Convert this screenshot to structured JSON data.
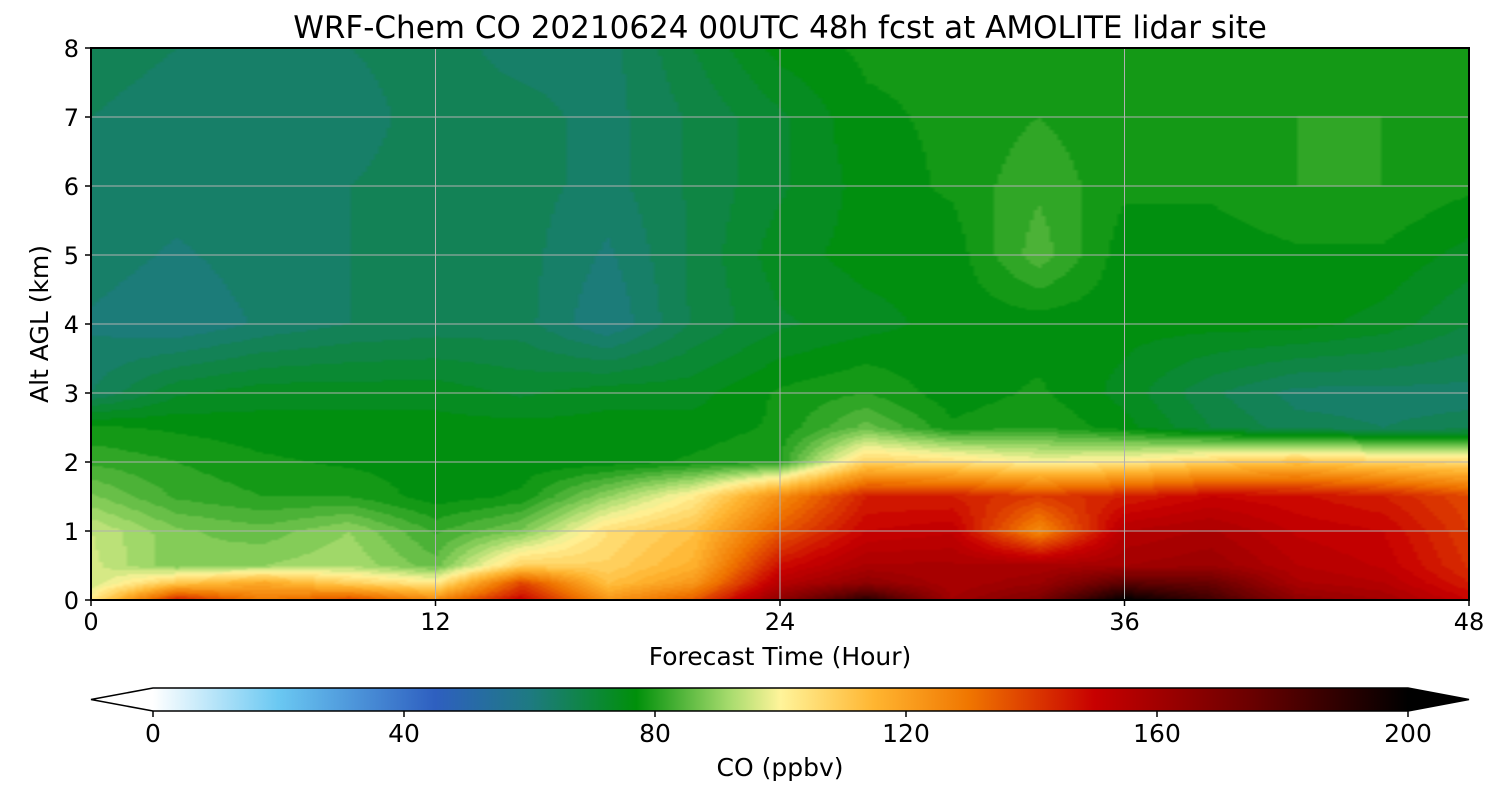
{
  "chart_data": {
    "type": "heatmap",
    "title": "WRF-Chem CO  20210624 00UTC 48h fcst at AMOLITE lidar site",
    "xlabel": "Forecast Time (Hour)",
    "ylabel": "Alt AGL (km)",
    "xlim": [
      0,
      48
    ],
    "ylim": [
      0,
      8
    ],
    "xticks": [
      0,
      12,
      24,
      36,
      48
    ],
    "xtick_labels": [
      "0",
      "12",
      "24",
      "36",
      "48"
    ],
    "yticks": [
      0,
      1,
      2,
      3,
      4,
      5,
      6,
      7,
      8
    ],
    "ytick_labels": [
      "0",
      "1",
      "2",
      "3",
      "4",
      "5",
      "6",
      "7",
      "8"
    ],
    "grid": true,
    "colorbar": {
      "label": "CO  (ppbv)",
      "range": [
        0,
        200
      ],
      "ticks": [
        0,
        40,
        80,
        120,
        160,
        200
      ],
      "tick_labels": [
        "0",
        "40",
        "80",
        "120",
        "160",
        "200"
      ],
      "extend": "both",
      "colormap_stops": [
        {
          "value": 0,
          "color": "#ffffff"
        },
        {
          "value": 20,
          "color": "#6ac8f2"
        },
        {
          "value": 45,
          "color": "#2e5fc0"
        },
        {
          "value": 60,
          "color": "#1e7a82"
        },
        {
          "value": 77,
          "color": "#00900a"
        },
        {
          "value": 92,
          "color": "#a8dc6e"
        },
        {
          "value": 100,
          "color": "#fff49a"
        },
        {
          "value": 115,
          "color": "#ffb530"
        },
        {
          "value": 130,
          "color": "#f07600"
        },
        {
          "value": 150,
          "color": "#c80000"
        },
        {
          "value": 175,
          "color": "#6a0000"
        },
        {
          "value": 200,
          "color": "#000000"
        }
      ]
    },
    "field": {
      "x": [
        0,
        3,
        6,
        9,
        12,
        15,
        18,
        21,
        24,
        27,
        30,
        33,
        36,
        39,
        42,
        45,
        48
      ],
      "y": [
        0,
        0.25,
        0.5,
        1.0,
        1.5,
        2.0,
        2.5,
        3.0,
        4.0,
        5.0,
        6.0,
        7.0,
        8.0
      ],
      "z": [
        [
          102,
          145,
          128,
          138,
          125,
          150,
          122,
          135,
          165,
          190,
          160,
          170,
          200,
          185,
          165,
          160,
          150
        ],
        [
          95,
          110,
          118,
          108,
          102,
          138,
          112,
          122,
          155,
          165,
          158,
          162,
          178,
          175,
          158,
          155,
          145
        ],
        [
          96,
          88,
          90,
          92,
          86,
          108,
          108,
          116,
          148,
          158,
          158,
          158,
          160,
          162,
          155,
          152,
          142
        ],
        [
          95,
          88,
          86,
          90,
          82,
          88,
          105,
          112,
          135,
          150,
          152,
          125,
          155,
          158,
          152,
          150,
          140
        ],
        [
          88,
          82,
          80,
          80,
          76,
          78,
          90,
          102,
          125,
          145,
          145,
          140,
          145,
          150,
          148,
          145,
          138
        ],
        [
          82,
          80,
          78,
          77,
          76,
          76,
          76,
          78,
          80,
          108,
          105,
          100,
          102,
          108,
          112,
          108,
          106
        ],
        [
          78,
          77,
          76,
          76,
          76,
          76,
          76,
          76,
          78,
          86,
          78,
          80,
          76,
          70,
          66,
          65,
          66
        ],
        [
          65,
          72,
          74,
          74,
          74,
          72,
          74,
          74,
          78,
          80,
          76,
          78,
          74,
          68,
          64,
          64,
          64
        ],
        [
          62,
          60,
          63,
          65,
          66,
          66,
          60,
          68,
          72,
          74,
          76,
          76,
          76,
          76,
          76,
          74,
          70
        ],
        [
          64,
          62,
          64,
          65,
          65,
          66,
          62,
          68,
          74,
          76,
          76,
          84,
          76,
          76,
          77,
          77,
          74
        ],
        [
          64,
          64,
          65,
          65,
          66,
          66,
          64,
          68,
          72,
          76,
          78,
          82,
          78,
          78,
          80,
          80,
          78
        ],
        [
          65,
          64,
          64,
          64,
          66,
          66,
          64,
          68,
          72,
          77,
          78,
          80,
          78,
          78,
          80,
          80,
          79
        ],
        [
          66,
          65,
          65,
          65,
          66,
          64,
          64,
          70,
          76,
          78,
          78,
          78,
          78,
          79,
          80,
          79,
          78
        ]
      ]
    }
  }
}
